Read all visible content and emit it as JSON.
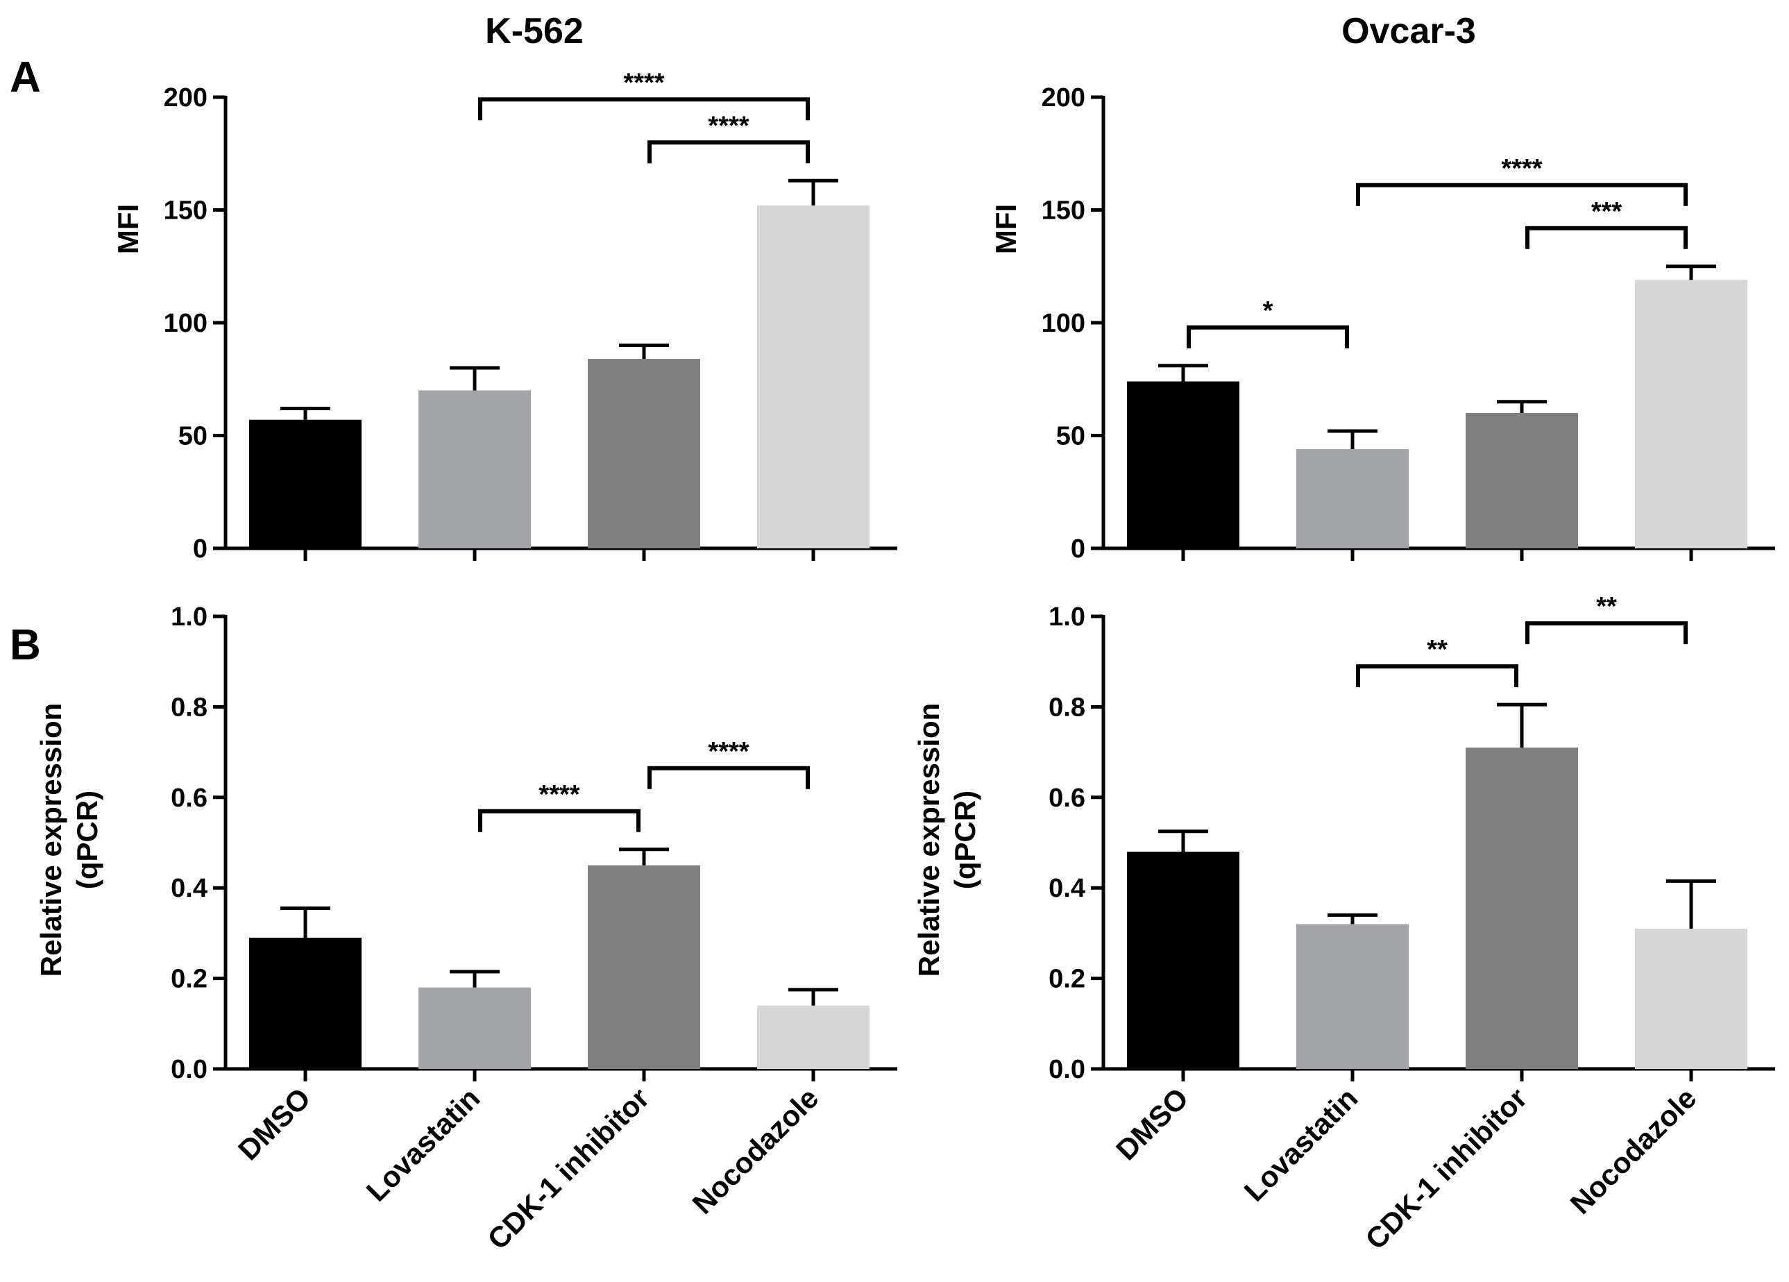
{
  "columns": [
    "K-562",
    "Ovcar-3"
  ],
  "rows": [
    "A",
    "B"
  ],
  "colors": {
    "DMSO": "#000000",
    "Lovastatin": "#a3a4a8",
    "CDK-1 inhibitor": "#808080",
    "Nocodazole": "#d6d6d6",
    "axis": "#000000"
  },
  "chart_data": [
    {
      "panel": "A",
      "title": "K-562",
      "type": "bar",
      "categories": [
        "DMSO",
        "Lovastatin",
        "CDK-1 inhibitor",
        "Nocodazole"
      ],
      "values": [
        57,
        70,
        84,
        152
      ],
      "errors": [
        5,
        10,
        6,
        11
      ],
      "ylabel": "MFI",
      "ylim": [
        0,
        200
      ],
      "yticks": [
        0,
        50,
        100,
        150,
        200
      ],
      "ytick_labels": [
        "0",
        "50",
        "100",
        "150",
        "200"
      ],
      "significance": [
        {
          "from": 1,
          "to": 3,
          "label": "****"
        },
        {
          "from": 2,
          "to": 3,
          "label": "****"
        }
      ]
    },
    {
      "panel": "",
      "title": "Ovcar-3",
      "type": "bar",
      "categories": [
        "DMSO",
        "Lovastatin",
        "CDK-1 inhibitor",
        "Nocodazole"
      ],
      "values": [
        74,
        44,
        60,
        119
      ],
      "errors": [
        7,
        8,
        5,
        6
      ],
      "ylabel": "MFI",
      "ylim": [
        0,
        200
      ],
      "yticks": [
        0,
        50,
        100,
        150,
        200
      ],
      "ytick_labels": [
        "0",
        "50",
        "100",
        "150",
        "200"
      ],
      "significance": [
        {
          "from": 0,
          "to": 1,
          "label": "*"
        },
        {
          "from": 1,
          "to": 3,
          "label": "****"
        },
        {
          "from": 2,
          "to": 3,
          "label": "***"
        }
      ]
    },
    {
      "panel": "B",
      "title": "",
      "type": "bar",
      "categories": [
        "DMSO",
        "Lovastatin",
        "CDK-1 inhibitor",
        "Nocodazole"
      ],
      "values": [
        0.29,
        0.18,
        0.45,
        0.14
      ],
      "errors": [
        0.065,
        0.035,
        0.035,
        0.035
      ],
      "ylabel": "Relative expression\n(qPCR)",
      "ylim": [
        0,
        1.0
      ],
      "yticks": [
        0,
        0.2,
        0.4,
        0.6,
        0.8,
        1.0
      ],
      "ytick_labels": [
        "0.0",
        "0.2",
        "0.4",
        "0.6",
        "0.8",
        "1.0"
      ],
      "significance": [
        {
          "from": 1,
          "to": 2,
          "label": "****"
        },
        {
          "from": 2,
          "to": 3,
          "label": "****"
        }
      ]
    },
    {
      "panel": "",
      "title": "",
      "type": "bar",
      "categories": [
        "DMSO",
        "Lovastatin",
        "CDK-1 inhibitor",
        "Nocodazole"
      ],
      "values": [
        0.48,
        0.32,
        0.71,
        0.31
      ],
      "errors": [
        0.045,
        0.02,
        0.095,
        0.105
      ],
      "ylabel": "Relative expression\n(qPCR)",
      "ylim": [
        0,
        1.0
      ],
      "yticks": [
        0,
        0.2,
        0.4,
        0.6,
        0.8,
        1.0
      ],
      "ytick_labels": [
        "0.0",
        "0.2",
        "0.4",
        "0.6",
        "0.8",
        "1.0"
      ],
      "significance": [
        {
          "from": 1,
          "to": 2,
          "label": "**"
        },
        {
          "from": 2,
          "to": 3,
          "label": "**"
        }
      ]
    }
  ]
}
